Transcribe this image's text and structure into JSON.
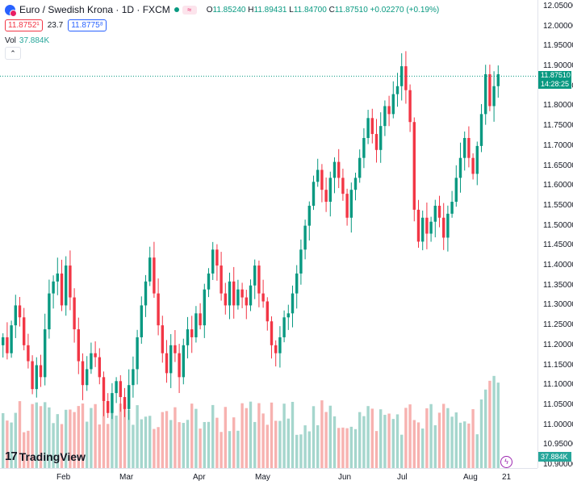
{
  "header": {
    "title": "Euro / Swedish Krona · 1D · FXCM",
    "ohlc": {
      "o_label": "O",
      "o": "11.85240",
      "h_label": "H",
      "h": "11.89431",
      "l_label": "L",
      "l": "11.84700",
      "c_label": "C",
      "c": "11.87510",
      "change": "+0.02270 (+0.19%)"
    },
    "bid": "11.8752¹",
    "spread": "23.7",
    "ask": "11.8775⁸",
    "volume_label": "Vol",
    "volume_value": "37.884K",
    "collapse_icon": "chevron-up-icon"
  },
  "branding": {
    "logo_text": "TradingView",
    "logo_icon": "tradingview-logo-icon"
  },
  "price_tag": {
    "price": "11.87510",
    "countdown": "14:28:25"
  },
  "volume_tag": "37.884K",
  "colors": {
    "up": "#089981",
    "down": "#f23645",
    "vol_up": "#a5d6cd",
    "vol_down": "#f7b2b0",
    "last_line": "#089981"
  },
  "chart_data": {
    "type": "candlestick",
    "symbol": "EURSEK",
    "timeframe": "1D",
    "ylim": [
      10.9,
      12.05
    ],
    "price_ticks": [
      "12.05000",
      "12.00000",
      "11.95000",
      "11.90000",
      "11.85000",
      "11.80000",
      "11.75000",
      "11.70000",
      "11.65000",
      "11.60000",
      "11.55000",
      "11.50000",
      "11.45000",
      "11.40000",
      "11.35000",
      "11.30000",
      "11.25000",
      "11.20000",
      "11.15000",
      "11.10000",
      "11.05000",
      "11.00000",
      "10.95000",
      "10.90000"
    ],
    "time_ticks": [
      "Feb",
      "Mar",
      "Apr",
      "May",
      "Jun",
      "Jul",
      "Aug",
      "21"
    ],
    "last_price": 11.8751,
    "start_close": 11.2,
    "closes": [
      11.22,
      11.18,
      11.25,
      11.3,
      11.27,
      11.2,
      11.16,
      11.09,
      11.15,
      11.12,
      11.24,
      11.33,
      11.36,
      11.38,
      11.3,
      11.4,
      11.32,
      11.24,
      11.16,
      11.1,
      11.14,
      11.18,
      11.17,
      11.12,
      11.06,
      11.03,
      11.08,
      11.11,
      11.07,
      11.04,
      11.1,
      11.14,
      11.22,
      11.3,
      11.36,
      11.42,
      11.33,
      11.25,
      11.18,
      11.13,
      11.2,
      11.18,
      11.12,
      11.2,
      11.24,
      11.22,
      11.28,
      11.25,
      11.34,
      11.38,
      11.44,
      11.4,
      11.33,
      11.3,
      11.36,
      11.3,
      11.34,
      11.32,
      11.3,
      11.35,
      11.4,
      11.33,
      11.31,
      11.26,
      11.2,
      11.18,
      11.22,
      11.27,
      11.28,
      11.33,
      11.38,
      11.44,
      11.5,
      11.55,
      11.61,
      11.64,
      11.59,
      11.56,
      11.62,
      11.66,
      11.62,
      11.58,
      11.52,
      11.59,
      11.62,
      11.67,
      11.72,
      11.77,
      11.73,
      11.69,
      11.75,
      11.8,
      11.78,
      11.83,
      11.85,
      11.9,
      11.84,
      11.76,
      11.54,
      11.46,
      11.52,
      11.48,
      11.51,
      11.55,
      11.52,
      11.47,
      11.53,
      11.56,
      11.62,
      11.67,
      11.72,
      11.67,
      11.63,
      11.7,
      11.78,
      11.88,
      11.8,
      11.85,
      11.88
    ],
    "volume_max": "37.884K"
  }
}
